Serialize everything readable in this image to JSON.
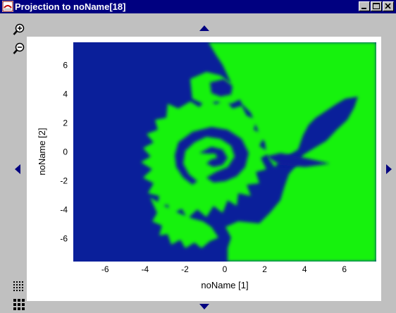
{
  "window": {
    "title": "Projection to noName[18]"
  },
  "colors": {
    "titlebar": "#000080",
    "blue_region": "#0a1f9a",
    "green_region": "#19f20f",
    "panel": "#c0c0c0"
  },
  "icons": {
    "zoom_in": "zoom-in-icon",
    "zoom_out": "zoom-out-icon",
    "nav_up": "arrow-up-icon",
    "nav_down": "arrow-down-icon",
    "nav_left": "arrow-left-icon",
    "nav_right": "arrow-right-icon"
  },
  "chart_data": {
    "type": "heatmap",
    "xlabel": "noName [1]",
    "ylabel": "noName [2]",
    "xlim": [
      -7.6,
      7.6
    ],
    "ylim": [
      -7.6,
      7.6
    ],
    "x_ticks": [
      "-6",
      "-4",
      "-2",
      "0",
      "2",
      "4",
      "6"
    ],
    "y_ticks": [
      "6",
      "4",
      "2",
      "0",
      "-2",
      "-4",
      "-6"
    ],
    "classes": [
      "blue",
      "green"
    ],
    "grid": false
  }
}
